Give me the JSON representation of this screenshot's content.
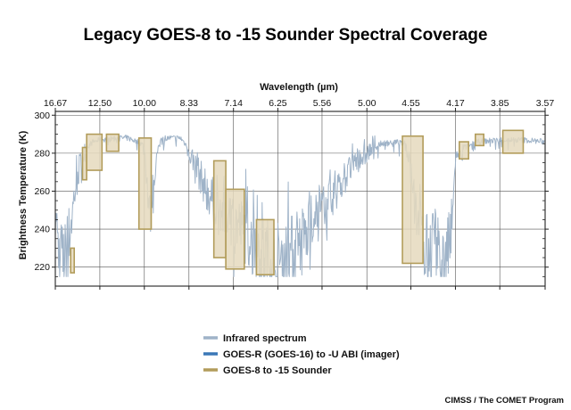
{
  "colors": {
    "spectrum": "#9fb3c8",
    "abi": "#3b78b7",
    "sounder_fill": "#e5d9bd",
    "sounder_stroke": "#b29c5a",
    "grid": "#555555",
    "frame": "#222222"
  },
  "credit": "CIMSS / The COMET Program",
  "chart_data": {
    "type": "line",
    "title": "Legacy GOES-8 to -15 Sounder Spectral Coverage",
    "xlabel": "Wavelength (µm)",
    "ylabel": "Brightness Temperature (K)",
    "xlim": [
      16.67,
      3.57
    ],
    "ylim": [
      210,
      302
    ],
    "x_ticks": [
      "16.67",
      "12.50",
      "10.00",
      "8.33",
      "7.14",
      "6.25",
      "5.56",
      "5.00",
      "4.55",
      "4.17",
      "3.85",
      "3.57"
    ],
    "y_ticks": [
      220,
      240,
      260,
      280,
      300
    ],
    "grid": true,
    "legend": [
      {
        "label": "Infrared spectrum",
        "series": "spectrum"
      },
      {
        "label": "GOES-R (GOES-16) to -U ABI (imager)",
        "series": "abi"
      },
      {
        "label": "GOES-8 to -15 Sounder",
        "series": "sounder"
      }
    ],
    "spectrum_anchors": [
      [
        16.67,
        250
      ],
      [
        16.2,
        226
      ],
      [
        15.6,
        222
      ],
      [
        15.2,
        233
      ],
      [
        14.8,
        248
      ],
      [
        14.5,
        262
      ],
      [
        14.0,
        275
      ],
      [
        13.5,
        283
      ],
      [
        13.0,
        286
      ],
      [
        12.5,
        287
      ],
      [
        11.5,
        288
      ],
      [
        10.8,
        288
      ],
      [
        10.3,
        286
      ],
      [
        10.0,
        284
      ],
      [
        9.75,
        245
      ],
      [
        9.55,
        272
      ],
      [
        9.3,
        288
      ],
      [
        8.9,
        288
      ],
      [
        8.6,
        288
      ],
      [
        8.4,
        284
      ],
      [
        8.1,
        272
      ],
      [
        7.8,
        260
      ],
      [
        7.5,
        250
      ],
      [
        7.3,
        248
      ],
      [
        7.14,
        245
      ],
      [
        6.95,
        240
      ],
      [
        6.7,
        233
      ],
      [
        6.5,
        227
      ],
      [
        6.35,
        224
      ],
      [
        6.25,
        223
      ],
      [
        6.1,
        226
      ],
      [
        5.9,
        232
      ],
      [
        5.75,
        240
      ],
      [
        5.56,
        250
      ],
      [
        5.35,
        262
      ],
      [
        5.15,
        274
      ],
      [
        5.0,
        280
      ],
      [
        4.85,
        285
      ],
      [
        4.7,
        286
      ],
      [
        4.6,
        285
      ],
      [
        4.55,
        275
      ],
      [
        4.5,
        250
      ],
      [
        4.45,
        235
      ],
      [
        4.4,
        228
      ],
      [
        4.35,
        232
      ],
      [
        4.3,
        225
      ],
      [
        4.25,
        220
      ],
      [
        4.2,
        240
      ],
      [
        4.17,
        275
      ],
      [
        4.1,
        283
      ],
      [
        4.0,
        286
      ],
      [
        3.85,
        287
      ],
      [
        3.7,
        287
      ],
      [
        3.57,
        286
      ]
    ],
    "sounder_channels": [
      {
        "x_range": [
          14.95,
          14.6
        ],
        "y_range": [
          217,
          230
        ]
      },
      {
        "x_range": [
          13.85,
          13.5
        ],
        "y_range": [
          266,
          283
        ]
      },
      {
        "x_range": [
          13.5,
          12.35
        ],
        "y_range": [
          271,
          290
        ]
      },
      {
        "x_range": [
          12.05,
          11.3
        ],
        "y_range": [
          281,
          290
        ]
      },
      {
        "x_range": [
          10.25,
          9.7
        ],
        "y_range": [
          240,
          288
        ]
      },
      {
        "x_range": [
          7.62,
          7.32
        ],
        "y_range": [
          225,
          276
        ]
      },
      {
        "x_range": [
          7.32,
          6.9
        ],
        "y_range": [
          219,
          261
        ]
      },
      {
        "x_range": [
          6.65,
          6.32
        ],
        "y_range": [
          216,
          245
        ]
      },
      {
        "x_range": [
          4.63,
          4.44
        ],
        "y_range": [
          222,
          289
        ]
      },
      {
        "x_range": [
          4.14,
          4.07
        ],
        "y_range": [
          277,
          286
        ]
      },
      {
        "x_range": [
          4.02,
          3.96
        ],
        "y_range": [
          284,
          290
        ]
      },
      {
        "x_range": [
          3.83,
          3.7
        ],
        "y_range": [
          280,
          292
        ]
      }
    ]
  }
}
